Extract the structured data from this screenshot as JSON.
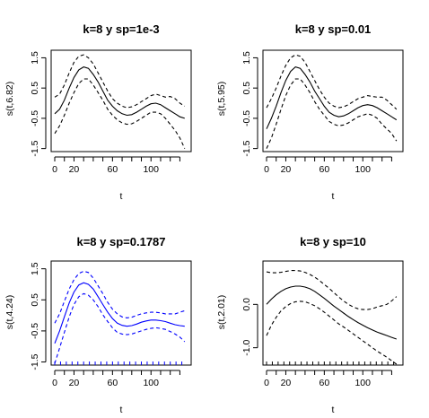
{
  "chart_data": [
    {
      "type": "line",
      "title": "k=8 y sp=1e-3",
      "xlabel": "t",
      "ylabel": "s(t,6.82)",
      "xlim": [
        0,
        138
      ],
      "ylim": [
        -1.6,
        1.75
      ],
      "xticks": [
        0,
        20,
        60,
        100
      ],
      "yticks": [
        -1.5,
        -0.5,
        0.5,
        1.5
      ],
      "rug": false,
      "color": "#000000",
      "series": [
        {
          "style": "solid",
          "x": [
            0,
            5,
            10,
            15,
            20,
            25,
            30,
            35,
            40,
            45,
            50,
            55,
            60,
            65,
            70,
            75,
            80,
            85,
            90,
            95,
            100,
            105,
            110,
            115,
            120,
            125,
            130,
            135
          ],
          "y": [
            -0.35,
            -0.2,
            0.1,
            0.5,
            0.85,
            1.1,
            1.2,
            1.15,
            0.95,
            0.7,
            0.4,
            0.1,
            -0.1,
            -0.25,
            -0.35,
            -0.4,
            -0.38,
            -0.3,
            -0.2,
            -0.1,
            -0.02,
            0.0,
            -0.05,
            -0.15,
            -0.25,
            -0.35,
            -0.45,
            -0.5
          ]
        },
        {
          "style": "dashed",
          "x": [
            0,
            5,
            10,
            15,
            20,
            25,
            30,
            35,
            40,
            45,
            50,
            55,
            60,
            65,
            70,
            75,
            80,
            85,
            90,
            95,
            100,
            105,
            110,
            115,
            120,
            125,
            130,
            135
          ],
          "y": [
            0.2,
            0.3,
            0.6,
            1.0,
            1.35,
            1.55,
            1.6,
            1.5,
            1.3,
            1.0,
            0.7,
            0.4,
            0.15,
            0.0,
            -0.1,
            -0.15,
            -0.12,
            -0.05,
            0.05,
            0.15,
            0.25,
            0.3,
            0.25,
            0.2,
            0.22,
            0.15,
            0.0,
            -0.1
          ]
        },
        {
          "style": "dashed",
          "x": [
            0,
            5,
            10,
            15,
            20,
            25,
            30,
            35,
            40,
            45,
            50,
            55,
            60,
            65,
            70,
            75,
            80,
            85,
            90,
            95,
            100,
            105,
            110,
            115,
            120,
            125,
            130,
            135
          ],
          "y": [
            -1.0,
            -0.75,
            -0.4,
            0.0,
            0.35,
            0.65,
            0.8,
            0.8,
            0.6,
            0.35,
            0.1,
            -0.2,
            -0.4,
            -0.55,
            -0.65,
            -0.7,
            -0.68,
            -0.6,
            -0.5,
            -0.4,
            -0.3,
            -0.3,
            -0.35,
            -0.5,
            -0.7,
            -0.9,
            -1.15,
            -1.5
          ]
        }
      ]
    },
    {
      "type": "line",
      "title": "k=8 y sp=0.01",
      "xlabel": "t",
      "ylabel": "s(t,5.95)",
      "xlim": [
        0,
        138
      ],
      "ylim": [
        -1.6,
        1.75
      ],
      "xticks": [
        0,
        20,
        60,
        100
      ],
      "yticks": [
        -1.5,
        -0.5,
        0.5,
        1.5
      ],
      "rug": false,
      "color": "#000000",
      "series": [
        {
          "style": "solid",
          "x": [
            0,
            5,
            10,
            15,
            20,
            25,
            30,
            35,
            40,
            45,
            50,
            55,
            60,
            65,
            70,
            75,
            80,
            85,
            90,
            95,
            100,
            105,
            110,
            115,
            120,
            125,
            130,
            135
          ],
          "y": [
            -0.85,
            -0.5,
            -0.1,
            0.35,
            0.75,
            1.05,
            1.2,
            1.15,
            0.95,
            0.7,
            0.4,
            0.15,
            -0.1,
            -0.3,
            -0.4,
            -0.45,
            -0.42,
            -0.35,
            -0.25,
            -0.15,
            -0.08,
            -0.05,
            -0.08,
            -0.15,
            -0.25,
            -0.35,
            -0.45,
            -0.55
          ]
        },
        {
          "style": "dashed",
          "x": [
            0,
            5,
            10,
            15,
            20,
            25,
            30,
            35,
            40,
            45,
            50,
            55,
            60,
            65,
            70,
            75,
            80,
            85,
            90,
            95,
            100,
            105,
            110,
            115,
            120,
            125,
            130,
            135
          ],
          "y": [
            -0.15,
            0.15,
            0.5,
            0.9,
            1.25,
            1.5,
            1.6,
            1.55,
            1.35,
            1.05,
            0.75,
            0.45,
            0.2,
            0.0,
            -0.1,
            -0.15,
            -0.12,
            -0.05,
            0.05,
            0.15,
            0.2,
            0.25,
            0.22,
            0.2,
            0.2,
            0.1,
            -0.05,
            -0.2
          ]
        },
        {
          "style": "dashed",
          "x": [
            0,
            5,
            10,
            15,
            20,
            25,
            30,
            35,
            40,
            45,
            50,
            55,
            60,
            65,
            70,
            75,
            80,
            85,
            90,
            95,
            100,
            105,
            110,
            115,
            120,
            125,
            130,
            135
          ],
          "y": [
            -1.5,
            -1.15,
            -0.7,
            -0.2,
            0.25,
            0.6,
            0.8,
            0.8,
            0.6,
            0.35,
            0.05,
            -0.2,
            -0.4,
            -0.6,
            -0.7,
            -0.75,
            -0.72,
            -0.65,
            -0.55,
            -0.45,
            -0.4,
            -0.35,
            -0.4,
            -0.5,
            -0.7,
            -0.85,
            -1.0,
            -1.25
          ]
        }
      ]
    },
    {
      "type": "line",
      "title": "k=8 y sp=0.1787",
      "xlabel": "t",
      "ylabel": "s(t,4.24)",
      "xlim": [
        0,
        138
      ],
      "ylim": [
        -1.6,
        1.75
      ],
      "xticks": [
        0,
        20,
        60,
        100
      ],
      "yticks": [
        -1.5,
        -0.5,
        0.5,
        1.5
      ],
      "rug": true,
      "color": "#0000ff",
      "series": [
        {
          "style": "solid",
          "x": [
            0,
            5,
            10,
            15,
            20,
            25,
            30,
            35,
            40,
            45,
            50,
            55,
            60,
            65,
            70,
            75,
            80,
            85,
            90,
            95,
            100,
            105,
            110,
            115,
            120,
            125,
            130,
            135
          ],
          "y": [
            -0.9,
            -0.5,
            -0.05,
            0.4,
            0.75,
            0.98,
            1.05,
            1.0,
            0.85,
            0.6,
            0.35,
            0.1,
            -0.1,
            -0.25,
            -0.32,
            -0.35,
            -0.33,
            -0.28,
            -0.22,
            -0.18,
            -0.15,
            -0.15,
            -0.17,
            -0.2,
            -0.25,
            -0.3,
            -0.33,
            -0.35
          ]
        },
        {
          "style": "dashed",
          "x": [
            0,
            5,
            10,
            15,
            20,
            25,
            30,
            35,
            40,
            45,
            50,
            55,
            60,
            65,
            70,
            75,
            80,
            85,
            90,
            95,
            100,
            105,
            110,
            115,
            120,
            125,
            130,
            135
          ],
          "y": [
            -0.25,
            0.05,
            0.45,
            0.85,
            1.15,
            1.35,
            1.42,
            1.38,
            1.2,
            0.95,
            0.7,
            0.42,
            0.2,
            0.05,
            -0.05,
            -0.08,
            -0.06,
            0.0,
            0.05,
            0.08,
            0.1,
            0.1,
            0.08,
            0.05,
            0.05,
            0.05,
            0.1,
            0.15
          ]
        },
        {
          "style": "dashed",
          "x": [
            0,
            5,
            10,
            15,
            20,
            25,
            30,
            35,
            40,
            45,
            50,
            55,
            60,
            65,
            70,
            75,
            80,
            85,
            90,
            95,
            100,
            105,
            110,
            115,
            120,
            125,
            130,
            135
          ],
          "y": [
            -1.55,
            -1.05,
            -0.55,
            -0.05,
            0.35,
            0.6,
            0.7,
            0.65,
            0.5,
            0.28,
            0.02,
            -0.2,
            -0.4,
            -0.55,
            -0.6,
            -0.62,
            -0.6,
            -0.55,
            -0.5,
            -0.45,
            -0.42,
            -0.4,
            -0.42,
            -0.45,
            -0.52,
            -0.6,
            -0.7,
            -0.85
          ]
        }
      ]
    },
    {
      "type": "line",
      "title": "k=8 y sp=10",
      "xlabel": "t",
      "ylabel": "s(t,2.01)",
      "xlim": [
        0,
        138
      ],
      "ylim": [
        -1.4,
        1.0
      ],
      "xticks": [
        0,
        20,
        60,
        100
      ],
      "yticks": [
        -1.0,
        0.0
      ],
      "rug": true,
      "color": "#000000",
      "series": [
        {
          "style": "solid",
          "x": [
            0,
            5,
            10,
            15,
            20,
            25,
            30,
            35,
            40,
            45,
            50,
            55,
            60,
            65,
            70,
            75,
            80,
            85,
            90,
            95,
            100,
            105,
            110,
            115,
            120,
            125,
            130,
            135
          ],
          "y": [
            0.0,
            0.12,
            0.22,
            0.3,
            0.36,
            0.4,
            0.42,
            0.42,
            0.4,
            0.36,
            0.3,
            0.22,
            0.14,
            0.05,
            -0.04,
            -0.12,
            -0.2,
            -0.28,
            -0.35,
            -0.42,
            -0.48,
            -0.54,
            -0.59,
            -0.64,
            -0.68,
            -0.72,
            -0.76,
            -0.8
          ]
        },
        {
          "style": "dashed",
          "x": [
            0,
            5,
            10,
            15,
            20,
            25,
            30,
            35,
            40,
            45,
            50,
            55,
            60,
            65,
            70,
            75,
            80,
            85,
            90,
            95,
            100,
            105,
            110,
            115,
            120,
            125,
            130,
            135
          ],
          "y": [
            0.75,
            0.73,
            0.73,
            0.74,
            0.76,
            0.78,
            0.78,
            0.77,
            0.74,
            0.69,
            0.63,
            0.55,
            0.46,
            0.37,
            0.27,
            0.17,
            0.08,
            0.0,
            -0.06,
            -0.1,
            -0.12,
            -0.12,
            -0.1,
            -0.06,
            -0.03,
            0.0,
            0.08,
            0.18
          ]
        },
        {
          "style": "dashed",
          "x": [
            0,
            5,
            10,
            15,
            20,
            25,
            30,
            35,
            40,
            45,
            50,
            55,
            60,
            65,
            70,
            75,
            80,
            85,
            90,
            95,
            100,
            105,
            110,
            115,
            120,
            125,
            130,
            135
          ],
          "y": [
            -0.72,
            -0.48,
            -0.3,
            -0.15,
            -0.05,
            0.02,
            0.06,
            0.07,
            0.06,
            0.02,
            -0.03,
            -0.1,
            -0.18,
            -0.27,
            -0.36,
            -0.45,
            -0.52,
            -0.6,
            -0.68,
            -0.76,
            -0.84,
            -0.92,
            -1.0,
            -1.08,
            -1.15,
            -1.22,
            -1.3,
            -1.38
          ]
        }
      ]
    }
  ]
}
